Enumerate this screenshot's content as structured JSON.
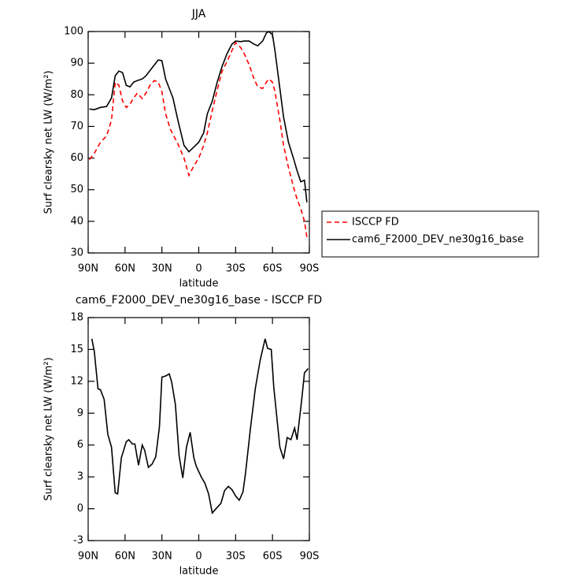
{
  "chart_data": [
    {
      "type": "line",
      "title": "JJA",
      "xlabel": "latitude",
      "ylabel": "Surf clearsky net LW (W/m²)",
      "x": [
        89,
        85,
        80,
        75,
        71,
        68,
        65,
        62,
        59,
        56,
        53,
        50,
        46,
        43,
        39,
        36,
        33,
        30,
        27,
        23,
        21,
        17,
        12,
        8,
        4,
        0,
        -4,
        -7,
        -11,
        -15,
        -19,
        -23,
        -27,
        -30,
        -34,
        -37,
        -41,
        -45,
        -48,
        -52,
        -55,
        -57,
        -60,
        -62,
        -66,
        -69,
        -73,
        -77,
        -80,
        -83,
        -86,
        -88
      ],
      "series": [
        {
          "name": "ISCCP FD",
          "color": "#ff0000",
          "line_style": "dashed",
          "values": [
            59.5,
            61.5,
            65,
            67,
            72,
            84,
            83,
            78,
            76,
            77,
            79,
            80.5,
            78.8,
            80.5,
            83.5,
            84.5,
            84,
            81,
            74,
            69,
            67.5,
            64.5,
            60,
            54.5,
            57.5,
            60,
            64,
            68,
            75,
            81.5,
            87.5,
            90.5,
            94,
            96.5,
            95,
            93,
            89.5,
            85,
            82.5,
            82,
            84,
            85,
            84,
            81,
            72,
            64,
            57,
            51,
            47,
            44,
            40,
            35
          ]
        },
        {
          "name": "cam6_F2000_DEV_ne30g16_base",
          "color": "#000000",
          "line_style": "solid",
          "values": [
            75.5,
            75.3,
            76,
            76.3,
            79,
            86,
            87.5,
            87,
            83,
            82.5,
            84,
            84.5,
            85,
            86,
            88,
            89.5,
            91,
            90.8,
            85,
            81,
            79,
            72,
            64,
            62,
            63.5,
            65,
            68,
            74,
            78,
            84,
            89,
            93,
            96,
            97,
            96.8,
            97,
            97,
            96,
            95.5,
            97,
            99.5,
            100,
            99,
            94,
            82,
            73,
            65,
            60,
            56,
            52.5,
            53,
            46
          ]
        }
      ],
      "xlim": [
        90,
        -90
      ],
      "xticks": [
        {
          "value": 90,
          "label": "90N"
        },
        {
          "value": 60,
          "label": "60N"
        },
        {
          "value": 30,
          "label": "30N"
        },
        0,
        {
          "value": -30,
          "label": "30S"
        },
        {
          "value": -60,
          "label": "60S"
        },
        {
          "value": -90,
          "label": "90S"
        }
      ],
      "ylim": [
        30,
        100
      ],
      "yticks": [
        30,
        40,
        50,
        60,
        70,
        80,
        90,
        100
      ],
      "legend": "right"
    },
    {
      "type": "line",
      "title": "cam6_F2000_DEV_ne30g16_base - ISCCP FD",
      "xlabel": "latitude",
      "ylabel": "Surf clearsky net LW (W/m²)",
      "x": [
        87,
        85,
        82,
        80,
        77,
        74,
        71,
        68,
        66,
        63,
        59,
        57,
        54,
        52,
        49,
        46,
        44,
        41,
        38,
        35,
        32,
        30,
        27,
        24,
        22,
        19,
        16,
        13,
        10,
        7,
        4,
        2,
        -2,
        -5,
        -8,
        -11,
        -14,
        -18,
        -21,
        -24,
        -27,
        -30,
        -33,
        -36,
        -38,
        -42,
        -46,
        -50,
        -54,
        -56,
        -59,
        -61,
        -66,
        -69,
        -72,
        -75,
        -78,
        -80,
        -84,
        -86,
        -89
      ],
      "values": [
        16,
        14.8,
        11.3,
        11.2,
        10.3,
        7,
        5.8,
        1.5,
        1.4,
        4.8,
        6.3,
        6.5,
        6.1,
        6.1,
        4.1,
        6,
        5.5,
        3.9,
        4.2,
        4.9,
        7.7,
        12.4,
        12.5,
        12.7,
        11.9,
        9.8,
        5,
        2.9,
        5.8,
        7.2,
        4.8,
        4,
        3,
        2.4,
        1.4,
        -0.4,
        0,
        0.5,
        1.7,
        2.1,
        1.8,
        1.2,
        0.8,
        1.6,
        3.3,
        7.5,
        11.3,
        14,
        16,
        15.1,
        15,
        11.5,
        5.8,
        4.7,
        6.7,
        6.5,
        7.6,
        6.5,
        10.5,
        12.8,
        13.2
      ],
      "color": "#000000",
      "xlim": [
        90,
        -90
      ],
      "xticks": [
        {
          "value": 90,
          "label": "90N"
        },
        {
          "value": 60,
          "label": "60N"
        },
        {
          "value": 30,
          "label": "30N"
        },
        0,
        {
          "value": -30,
          "label": "30S"
        },
        {
          "value": -60,
          "label": "60S"
        },
        {
          "value": -90,
          "label": "90S"
        }
      ],
      "ylim": [
        -3,
        18
      ],
      "yticks": [
        -3,
        0,
        3,
        6,
        9,
        12,
        15,
        18
      ]
    }
  ]
}
